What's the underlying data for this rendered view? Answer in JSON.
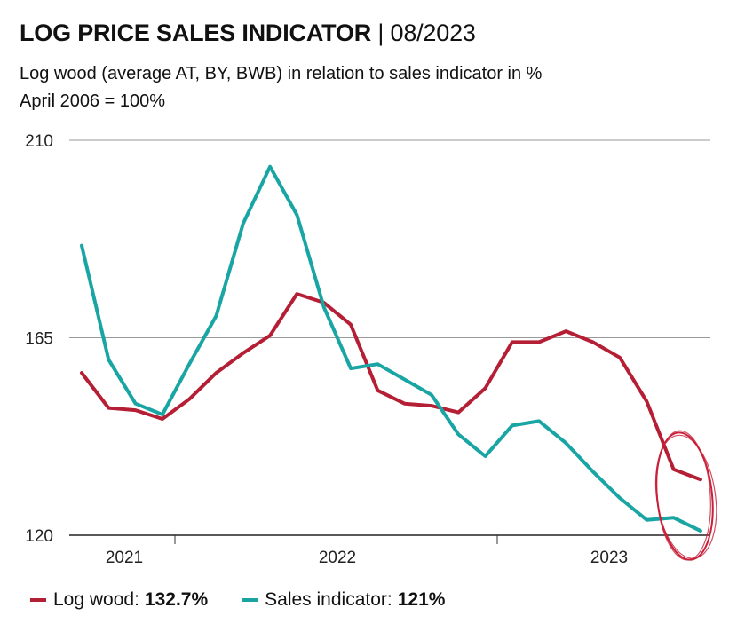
{
  "header": {
    "title": "LOG PRICE SALES INDICATOR",
    "separator": "|",
    "date": "08/2023",
    "subtitle_line1": "Log wood (average AT, BY, BWB) in relation to sales indicator in %",
    "subtitle_line2": "April 2006 = 100%"
  },
  "legend": {
    "items": [
      {
        "label": "Log wood:",
        "value": "132.7%",
        "color": "#b51f35"
      },
      {
        "label": "Sales indicator:",
        "value": "121%",
        "color": "#1aa5a5"
      }
    ]
  },
  "chart_data": {
    "type": "line",
    "ylim": [
      120,
      210
    ],
    "y_ticks": [
      120,
      165,
      210
    ],
    "x_tick_labels": [
      "2021",
      "2022",
      "2023"
    ],
    "grid": true,
    "legend_position": "bottom",
    "annotation": "hand-drawn red ellipse around final 2023 values",
    "series": [
      {
        "name": "Log wood",
        "color": "#b51f35",
        "values": [
          157,
          149,
          148.5,
          146.5,
          151,
          157,
          161.5,
          165.5,
          175,
          173,
          168,
          153,
          150,
          149.5,
          148,
          153.5,
          164,
          164,
          166.5,
          164,
          160.5,
          150.5,
          135,
          132.7
        ]
      },
      {
        "name": "Sales indicator",
        "color": "#1aa5a5",
        "values": [
          186,
          160,
          150,
          147.5,
          159,
          170,
          191,
          204,
          193,
          172,
          158,
          159,
          155.5,
          152,
          143,
          138,
          145,
          146,
          141,
          134.5,
          128.5,
          123.5,
          124,
          121
        ]
      }
    ]
  }
}
